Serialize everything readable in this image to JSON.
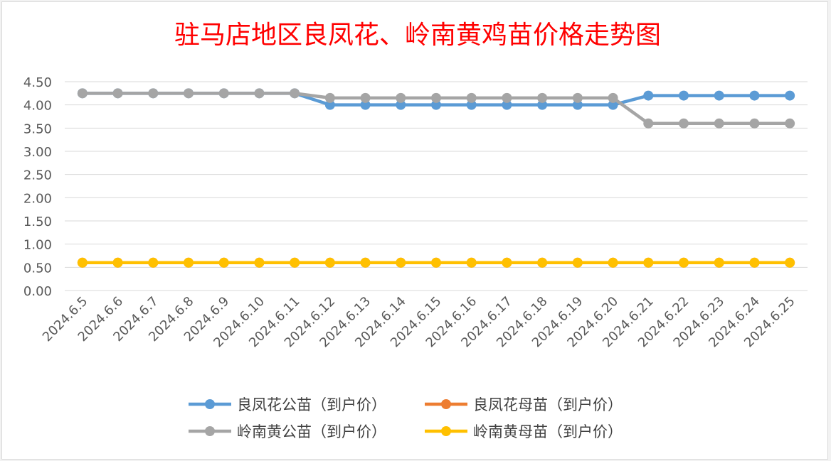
{
  "chart_data": {
    "type": "line",
    "title": "驻马店地区良凤花、岭南黄鸡苗价格走势图",
    "xlabel": "",
    "ylabel": "",
    "ylim": [
      0,
      4.5
    ],
    "yticks": [
      "0.00",
      "0.50",
      "1.00",
      "1.50",
      "2.00",
      "2.50",
      "3.00",
      "3.50",
      "4.00",
      "4.50"
    ],
    "grid": true,
    "legend_position": "bottom",
    "categories": [
      "2024.6.5",
      "2024.6.6",
      "2024.6.7",
      "2024.6.8",
      "2024.6.9",
      "2024.6.10",
      "2024.6.11",
      "2024.6.12",
      "2024.6.13",
      "2024.6.14",
      "2024.6.15",
      "2024.6.16",
      "2024.6.17",
      "2024.6.18",
      "2024.6.19",
      "2024.6.20",
      "2024.6.21",
      "2024.6.22",
      "2024.6.23",
      "2024.6.24",
      "2024.6.25"
    ],
    "series": [
      {
        "name": "良凤花公苗（到户价）",
        "color": "#5b9bd5",
        "values": [
          4.25,
          4.25,
          4.25,
          4.25,
          4.25,
          4.25,
          4.25,
          4.0,
          4.0,
          4.0,
          4.0,
          4.0,
          4.0,
          4.0,
          4.0,
          4.0,
          4.2,
          4.2,
          4.2,
          4.2,
          4.2
        ]
      },
      {
        "name": "良凤花母苗（到户价）",
        "color": "#ed7d31",
        "values": [
          0.6,
          0.6,
          0.6,
          0.6,
          0.6,
          0.6,
          0.6,
          0.6,
          0.6,
          0.6,
          0.6,
          0.6,
          0.6,
          0.6,
          0.6,
          0.6,
          0.6,
          0.6,
          0.6,
          0.6,
          0.6
        ]
      },
      {
        "name": "岭南黄公苗（到户价）",
        "color": "#a5a5a5",
        "values": [
          4.25,
          4.25,
          4.25,
          4.25,
          4.25,
          4.25,
          4.25,
          4.15,
          4.15,
          4.15,
          4.15,
          4.15,
          4.15,
          4.15,
          4.15,
          4.15,
          3.6,
          3.6,
          3.6,
          3.6,
          3.6
        ]
      },
      {
        "name": "岭南黄母苗（到户价）",
        "color": "#ffc000",
        "values": [
          0.6,
          0.6,
          0.6,
          0.6,
          0.6,
          0.6,
          0.6,
          0.6,
          0.6,
          0.6,
          0.6,
          0.6,
          0.6,
          0.6,
          0.6,
          0.6,
          0.6,
          0.6,
          0.6,
          0.6,
          0.6
        ]
      }
    ]
  },
  "colors": {
    "title": "#ff0000",
    "gridline": "#d9d9d9",
    "tick_text": "#595959"
  }
}
